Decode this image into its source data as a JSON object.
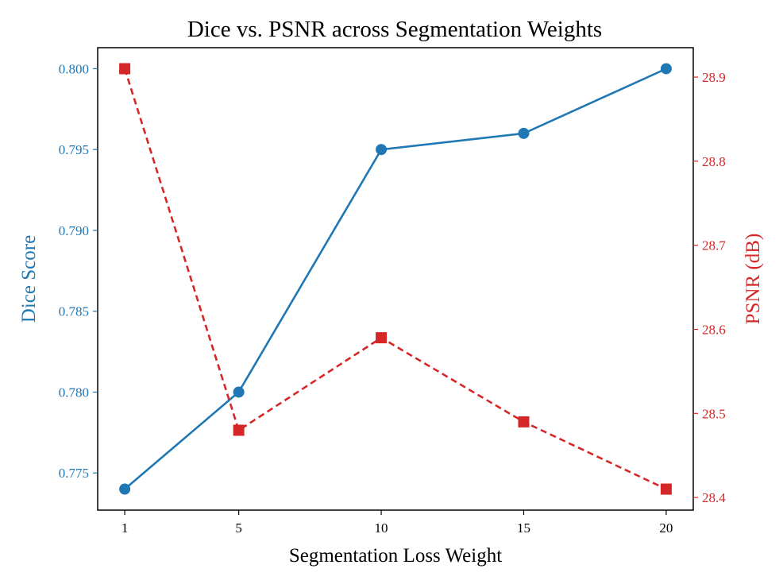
{
  "chart_data": {
    "type": "line",
    "title": "Dice vs. PSNR across Segmentation Weights",
    "xlabel": "Segmentation Loss Weight",
    "x": [
      1,
      5,
      10,
      15,
      20
    ],
    "x_ticks": [
      "1",
      "5",
      "10",
      "15",
      "20"
    ],
    "xlim": [
      0.05,
      20.95
    ],
    "grid": false,
    "series": [
      {
        "name": "Dice Score",
        "axis": "left",
        "values": [
          0.774,
          0.78,
          0.795,
          0.796,
          0.8
        ],
        "color": "#1f77b4",
        "marker": "circle",
        "linestyle": "solid"
      },
      {
        "name": "PSNR (dB)",
        "axis": "right",
        "values": [
          28.91,
          28.48,
          28.59,
          28.49,
          28.41
        ],
        "color": "#d62728",
        "marker": "square",
        "linestyle": "dashed"
      }
    ],
    "y_left": {
      "label": "Dice Score",
      "lim": [
        0.7727,
        0.8013
      ],
      "ticks": [
        "0.775",
        "0.780",
        "0.785",
        "0.790",
        "0.795",
        "0.800"
      ],
      "tick_values": [
        0.775,
        0.78,
        0.785,
        0.79,
        0.795,
        0.8
      ],
      "color": "#1f77b4"
    },
    "y_right": {
      "label": "PSNR (dB)",
      "lim": [
        28.385,
        28.935
      ],
      "ticks": [
        "28.4",
        "28.5",
        "28.6",
        "28.7",
        "28.8",
        "28.9"
      ],
      "tick_values": [
        28.4,
        28.5,
        28.6,
        28.7,
        28.8,
        28.9
      ],
      "color": "#d62728"
    }
  }
}
